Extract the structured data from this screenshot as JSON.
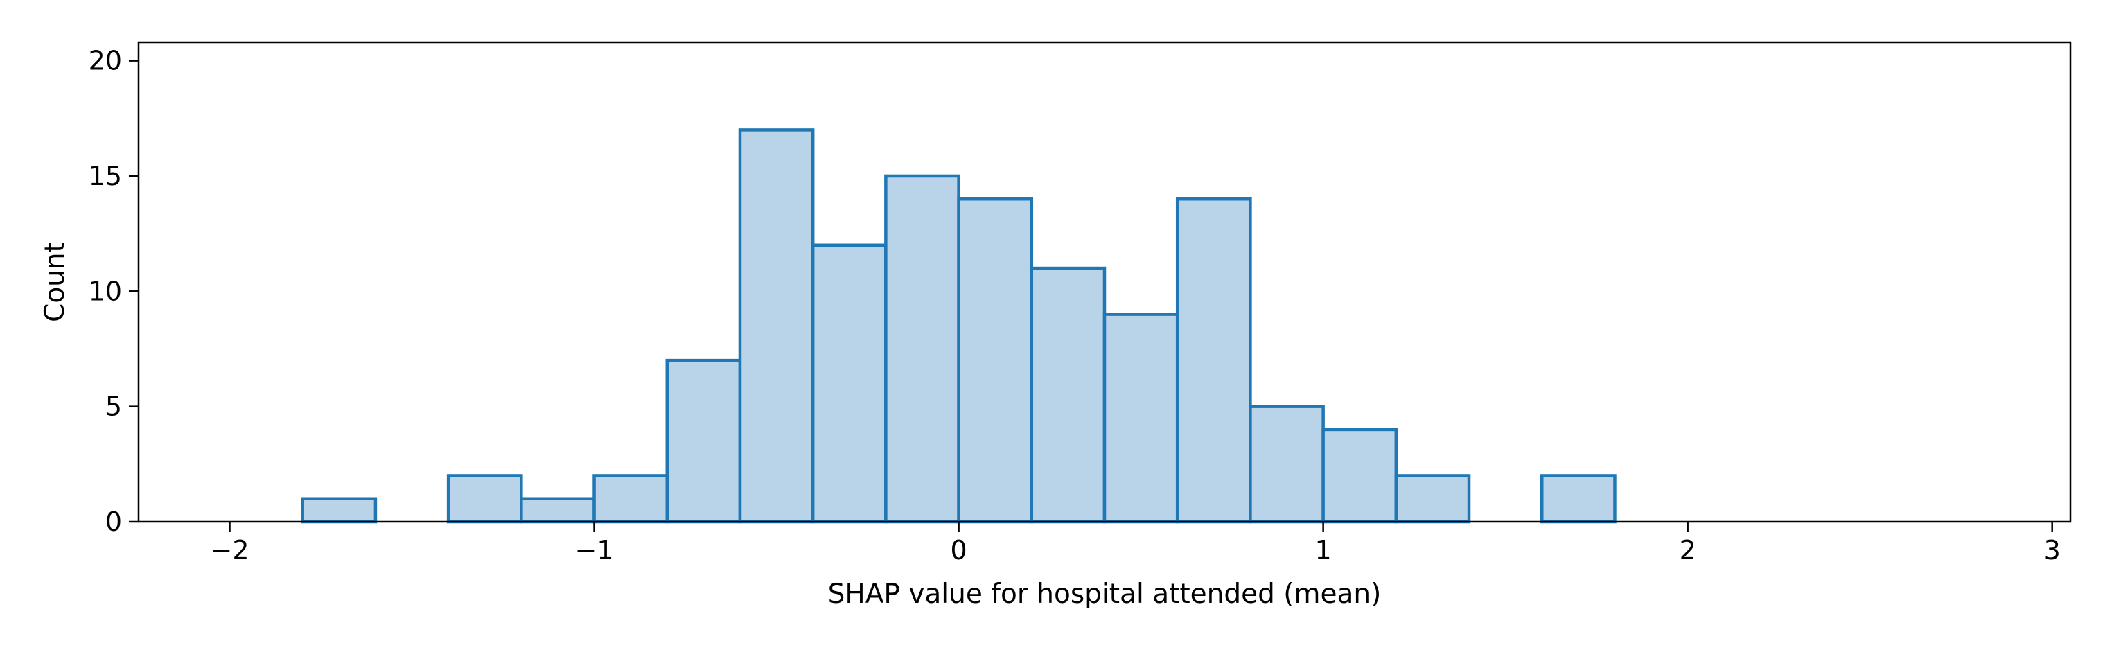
{
  "chart_data": {
    "type": "bar",
    "subtype": "histogram",
    "title": "",
    "xlabel": "SHAP value for hospital attended (mean)",
    "ylabel": "Count",
    "xlim": [
      -2.25,
      3.05
    ],
    "ylim": [
      0,
      20.8
    ],
    "xticks": [
      -2,
      -1,
      0,
      1,
      2,
      3
    ],
    "xtick_labels": [
      "−2",
      "−1",
      "0",
      "1",
      "2",
      "3"
    ],
    "yticks": [
      0,
      5,
      10,
      15,
      20
    ],
    "ytick_labels": [
      "0",
      "5",
      "10",
      "15",
      "20"
    ],
    "bin_edges": [
      -2.0,
      -1.8,
      -1.6,
      -1.4,
      -1.2,
      -1.0,
      -0.8,
      -0.6,
      -0.4,
      -0.2,
      0.0,
      0.2,
      0.4,
      0.6,
      0.8,
      1.0,
      1.2,
      1.4,
      1.6,
      1.8,
      2.0,
      2.2,
      2.4,
      2.6,
      2.8
    ],
    "values": [
      0,
      1,
      0,
      2,
      1,
      2,
      7,
      17,
      12,
      15,
      14,
      11,
      9,
      14,
      5,
      4,
      2,
      0,
      2,
      0,
      0,
      0,
      0,
      0
    ],
    "grid": false,
    "legend": false,
    "colors": {
      "fill": "#b9d4e9",
      "edge": "#1f77b4",
      "axis": "#000000"
    }
  }
}
